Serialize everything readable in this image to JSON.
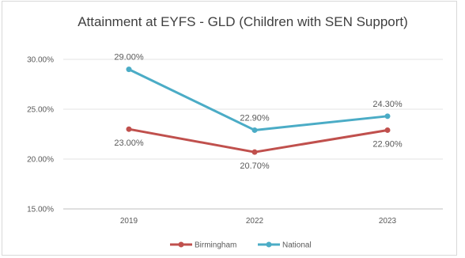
{
  "chart_data": {
    "type": "line",
    "title": "Attainment at EYFS - GLD (Children with SEN Support)",
    "xlabel": "",
    "ylabel": "",
    "categories": [
      "2019",
      "2022",
      "2023"
    ],
    "y_ticks": [
      "15.00%",
      "20.00%",
      "25.00%",
      "30.00%"
    ],
    "ylim": [
      15,
      30
    ],
    "grid": "horizontal",
    "legend_position": "bottom",
    "series": [
      {
        "name": "Birmingham",
        "color": "#c0504d",
        "values": [
          23.0,
          20.7,
          22.9
        ],
        "labels": [
          "23.00%",
          "20.70%",
          "22.90%"
        ]
      },
      {
        "name": "National",
        "color": "#4bacc6",
        "values": [
          29.0,
          22.9,
          24.3
        ],
        "labels": [
          "29.00%",
          "22.90%",
          "24.30%"
        ]
      }
    ]
  }
}
